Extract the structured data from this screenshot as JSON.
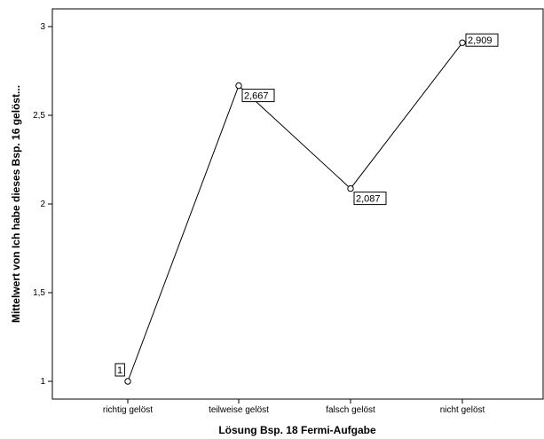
{
  "chart_data": {
    "type": "line",
    "categories": [
      "richtig gelöst",
      "teilweise gelöst",
      "falsch gelöst",
      "nicht gelöst"
    ],
    "values": [
      1,
      2.667,
      2.087,
      2.909
    ],
    "data_labels": [
      "1",
      "2,667",
      "2,087",
      "2,909"
    ],
    "xlabel": "Lösung Bsp. 18 Fermi-Aufgabe",
    "ylabel": "Mittelwert von Ich habe dieses Bsp. 16 gelöst...",
    "ylim": [
      0.9,
      3.1
    ],
    "yticks": [
      1,
      1.5,
      2,
      2.5,
      3
    ],
    "ytick_labels": [
      "1",
      "1,5",
      "2",
      "2,5",
      "3"
    ],
    "grid": false,
    "colors": {
      "line": "#000000",
      "background": "#ffffff"
    }
  }
}
